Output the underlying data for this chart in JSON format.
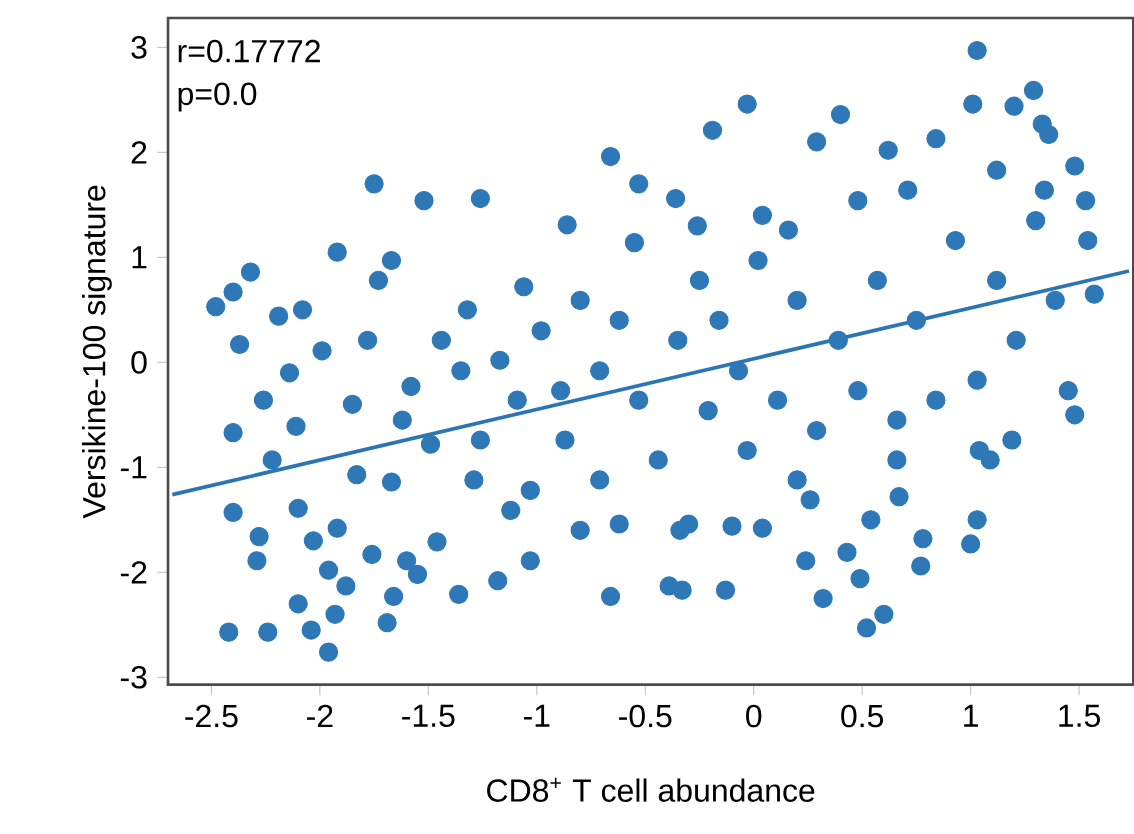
{
  "chart_data": {
    "type": "scatter",
    "xlabel": "CD8$^{+}$ T cell abundance",
    "ylabel": "Versikine-100 signature",
    "annotations": [
      "r=0.17772",
      "p=0.0"
    ],
    "xlim": [
      -2.7,
      1.75
    ],
    "ylim": [
      -3.07,
      3.28
    ],
    "xticks": [
      {
        "value": -2.5,
        "label": "-2.5"
      },
      {
        "value": -2,
        "label": "-2"
      },
      {
        "value": -1.5,
        "label": "-1.5"
      },
      {
        "value": -1,
        "label": "-1"
      },
      {
        "value": -0.5,
        "label": "-0.5"
      },
      {
        "value": 0,
        "label": "0"
      },
      {
        "value": 0.5,
        "label": "0.5"
      },
      {
        "value": 1,
        "label": "1"
      },
      {
        "value": 1.5,
        "label": "1.5"
      }
    ],
    "yticks": [
      -3,
      -2,
      -1,
      0,
      1,
      2,
      3
    ],
    "grid": false,
    "series": [
      {
        "marker": "circle",
        "color": "#2e78b7",
        "x": [
          1.03,
          1.29,
          1.2,
          1.01,
          -0.03,
          0.4,
          -1.75,
          -1.52,
          -1.26,
          -0.86,
          -0.55,
          -0.66,
          -0.19,
          -2.48,
          -2.4,
          -2.32,
          -2.37,
          -2.19,
          -2.08,
          -1.92,
          -1.73,
          -1.67,
          -1.99,
          -2.14,
          -1.78,
          -2.4,
          -2.4,
          -2.28,
          -2.29,
          -2.42,
          -2.24,
          -2.04,
          -1.96,
          -2.1,
          -1.93,
          -1.88,
          -1.96,
          -2.03,
          -1.92,
          -2.1,
          -1.83,
          -1.67,
          -1.76,
          -1.6,
          -1.66,
          -1.69,
          -1.36,
          -1.55,
          -1.29,
          -1.46,
          -2.11,
          -1.85,
          -1.62,
          -1.49,
          -1.58,
          -1.17,
          -1.32,
          -1.06,
          -0.98,
          -0.8,
          -1.09,
          -0.87,
          -0.71,
          -0.62,
          -1.03,
          -1.18,
          -1.12,
          -0.53,
          -0.44,
          -0.3,
          -0.66,
          -0.39,
          -0.33,
          -0.13,
          0.32,
          0.52,
          0.6,
          0.49,
          0.24,
          0.43,
          0.77,
          0.78,
          1.0,
          1.03,
          0.54,
          0.26,
          0.67,
          0.04,
          -0.1,
          -0.34,
          1.36,
          1.33,
          0.29,
          0.84,
          0.62,
          1.48,
          1.54,
          1.57,
          1.48,
          1.45,
          1.19,
          1.04,
          1.09,
          -0.53,
          -0.36,
          -0.26,
          0.04,
          0.02,
          0.2,
          0.39,
          0.57,
          0.75,
          0.93,
          1.12,
          1.3,
          1.39,
          1.21,
          1.03,
          0.84,
          0.66,
          0.48,
          0.29,
          0.11,
          -0.07,
          -0.16,
          -0.35,
          -0.25,
          0.16,
          0.48,
          0.71,
          1.12,
          1.34,
          1.53,
          0.2,
          0.66,
          -0.03,
          -0.21,
          -0.71,
          -0.62,
          -0.89,
          -1.35,
          -1.44,
          -2.22,
          -2.26,
          -1.26,
          -1.03,
          -0.8
        ],
        "values": [
          2.97,
          2.59,
          2.44,
          2.46,
          2.46,
          2.36,
          1.7,
          1.54,
          1.56,
          1.31,
          1.14,
          1.96,
          2.21,
          0.53,
          0.67,
          0.86,
          0.17,
          0.44,
          0.5,
          1.05,
          0.78,
          0.97,
          0.11,
          -0.1,
          0.21,
          -0.67,
          -1.43,
          -1.66,
          -1.89,
          -2.57,
          -2.57,
          -2.55,
          -2.76,
          -2.3,
          -2.4,
          -2.13,
          -1.98,
          -1.7,
          -1.58,
          -1.39,
          -1.07,
          -1.14,
          -1.83,
          -1.89,
          -2.23,
          -2.48,
          -2.21,
          -2.02,
          -1.12,
          -1.71,
          -0.61,
          -0.4,
          -0.55,
          -0.78,
          -0.23,
          0.02,
          0.5,
          0.72,
          0.3,
          0.59,
          -0.36,
          -0.74,
          -1.12,
          -1.54,
          -1.89,
          -2.08,
          -1.41,
          -0.36,
          -0.93,
          -1.54,
          -2.23,
          -2.13,
          -2.17,
          -2.17,
          -2.25,
          -2.53,
          -2.4,
          -2.06,
          -1.89,
          -1.81,
          -1.94,
          -1.68,
          -1.73,
          -1.5,
          -1.5,
          -1.31,
          -1.28,
          -1.58,
          -1.56,
          -1.6,
          2.17,
          2.27,
          2.1,
          2.13,
          2.02,
          1.87,
          1.16,
          0.65,
          -0.5,
          -0.27,
          -0.74,
          -0.84,
          -0.93,
          1.7,
          1.56,
          1.3,
          1.4,
          0.97,
          0.59,
          0.21,
          0.78,
          0.4,
          1.16,
          0.78,
          1.35,
          0.59,
          0.21,
          -0.17,
          -0.36,
          -0.55,
          -0.27,
          -0.65,
          -0.36,
          -0.08,
          0.4,
          0.21,
          0.78,
          1.26,
          1.54,
          1.64,
          1.83,
          1.64,
          1.54,
          -1.12,
          -0.93,
          -0.84,
          -0.46,
          -0.08,
          0.4,
          -0.27,
          -0.08,
          0.21,
          -0.93,
          -0.36,
          -0.74,
          -1.22,
          -1.6
        ]
      },
      {
        "type": "line",
        "marker": "none",
        "color": "#2b75b3",
        "x": [
          -2.68,
          1.73
        ],
        "values": [
          -1.26,
          0.87
        ]
      }
    ]
  }
}
